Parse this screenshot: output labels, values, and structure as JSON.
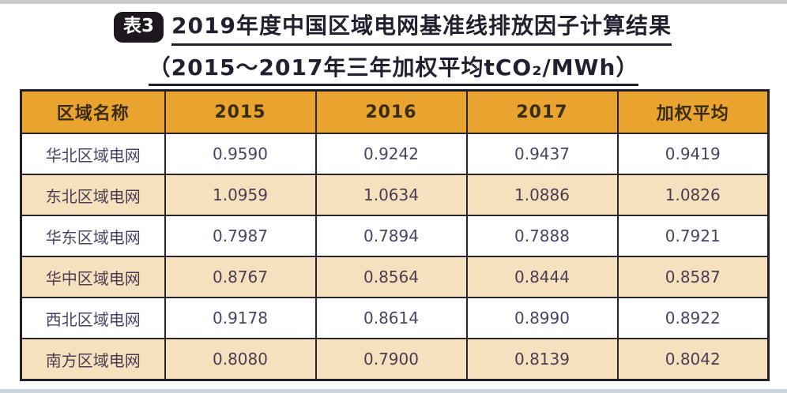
{
  "page": {
    "badge_label": "表3",
    "title_line1": "2019年度中国区域电网基准线排放因子计算结果",
    "title_line2": "（2015～2017年三年加权平均tCO₂/MWh）"
  },
  "colors": {
    "header_bg": "#E8A42F",
    "alt_row_bg": "#F6E1BE",
    "white_row_bg": "#FFFFFF",
    "border": "#2A2430",
    "cell_text": "#4B4263",
    "header_text": "#3A2C12",
    "title_text": "#241F2E",
    "badge_bg": "#1C181D",
    "top_strip": "#C9CBCE",
    "bottom_strip": "#CCD4DE"
  },
  "chart_data": {
    "type": "table",
    "title": "2019年度中国区域电网基准线排放因子计算结果",
    "subtitle": "（2015～2017年三年加权平均tCO₂/MWh）",
    "columns": [
      "区域名称",
      "2015",
      "2016",
      "2017",
      "加权平均"
    ],
    "rows": [
      {
        "name": "华北区域电网",
        "values": [
          "0.9590",
          "0.9242",
          "0.9437",
          "0.9419"
        ]
      },
      {
        "name": "东北区域电网",
        "values": [
          "1.0959",
          "1.0634",
          "1.0886",
          "1.0826"
        ]
      },
      {
        "name": "华东区域电网",
        "values": [
          "0.7987",
          "0.7894",
          "0.7888",
          "0.7921"
        ]
      },
      {
        "name": "华中区域电网",
        "values": [
          "0.8767",
          "0.8564",
          "0.8444",
          "0.8587"
        ]
      },
      {
        "name": "西北区域电网",
        "values": [
          "0.9178",
          "0.8614",
          "0.8990",
          "0.8922"
        ]
      },
      {
        "name": "南方区域电网",
        "values": [
          "0.8080",
          "0.7900",
          "0.8139",
          "0.8042"
        ]
      }
    ]
  }
}
